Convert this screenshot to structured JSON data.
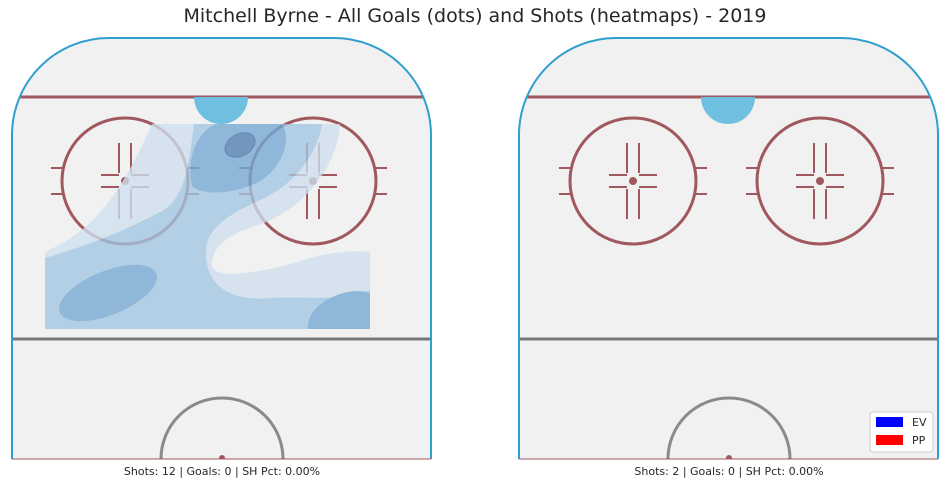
{
  "chart_data": {
    "type": "heatmap",
    "title": "Mitchell Byrne - All Goals (dots) and Shots (heatmaps) - 2019",
    "panels": [
      {
        "caption": "Shots: 12 | Goals: 0 | SH Pct: 0.00%",
        "shots": 12,
        "goals": 0,
        "sh_pct": "0.00%",
        "heatmap_levels": 4,
        "goal_dots": []
      },
      {
        "caption": "Shots: 2 | Goals: 0 | SH Pct: 0.00%",
        "shots": 2,
        "goals": 0,
        "sh_pct": "0.00%",
        "heatmap_levels": 0,
        "goal_dots": []
      }
    ],
    "legend": {
      "placement": "bottom-right",
      "entries": [
        {
          "label": "EV",
          "color": "#0000ff"
        },
        {
          "label": "PP",
          "color": "#ff0000"
        }
      ]
    }
  },
  "colors": {
    "boards": "#2e9fd0",
    "goal_line": "#a0585e",
    "blue_line": "#777777",
    "crease": "#6fbfe0",
    "faceoff": "#a0585e",
    "ice": "#f1f1f1",
    "heat": [
      "#cfe0ef",
      "#a2c6e2",
      "#74a8d3",
      "#4f7fb1"
    ]
  }
}
